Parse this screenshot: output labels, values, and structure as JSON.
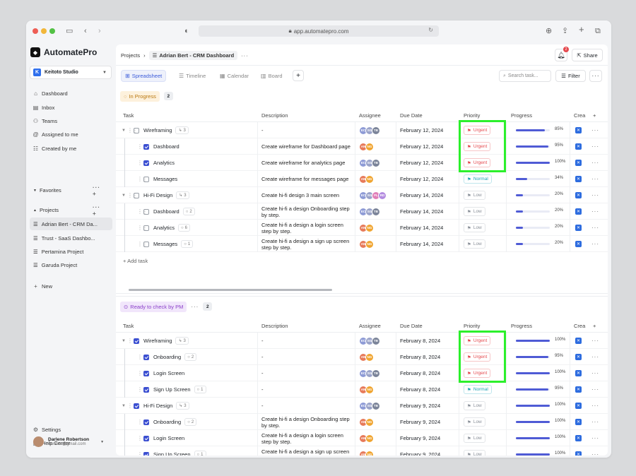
{
  "browser": {
    "url": "app.automatepro.com"
  },
  "app": {
    "name": "AutomatePro"
  },
  "workspace": {
    "name": "Keitoto Studio",
    "initial": "K"
  },
  "nav": {
    "dashboard": "Dashboard",
    "inbox": "Inbox",
    "teams": "Teams",
    "assigned": "Assigned to me",
    "created": "Created by me",
    "favorites": "Favorites",
    "projects": "Projects",
    "new": "New",
    "settings": "Settings",
    "help": "Help Center"
  },
  "projects": [
    "Adrian Bert - CRM Da...",
    "Trust - SaaS Dashbo...",
    "Pertamina Project",
    "Garuda Project"
  ],
  "user": {
    "name": "Darlene Robertson",
    "email": "darlene@gmail.com"
  },
  "breadcrumb": {
    "root": "Projects",
    "current": "Adrian Bert - CRM Dashboard"
  },
  "notifications": {
    "count": "2"
  },
  "share_label": "Share",
  "views": [
    "Spreadsheet",
    "Timeline",
    "Calendar",
    "Board"
  ],
  "search": {
    "placeholder": "Search task..."
  },
  "filter_label": "Filter",
  "columns": {
    "task": "Task",
    "description": "Description",
    "assignee": "Assignee",
    "due": "Due Date",
    "priority": "Priority",
    "progress": "Progress",
    "created": "Crea"
  },
  "add_task": "Add task",
  "groups": [
    {
      "label": "In Progress",
      "count": "2",
      "rows": [
        {
          "task": "Wireframing",
          "sub": "3",
          "subicon": "subtask",
          "level": 0,
          "checked": false,
          "desc": "-",
          "avatars": [
            "EC",
            "SG",
            "TB"
          ],
          "due": "February 12, 2024",
          "priority": "Urgent",
          "progress": 85,
          "pct": "85%"
        },
        {
          "task": "Dashboard",
          "sub": "",
          "level": 1,
          "checked": true,
          "desc": "Create wireframe for Dashboard page",
          "avatars": [
            "AN",
            "NG"
          ],
          "due": "February 12, 2024",
          "priority": "Urgent",
          "progress": 95,
          "pct": "95%"
        },
        {
          "task": "Analytics",
          "sub": "",
          "level": 1,
          "checked": true,
          "desc": "Create wireframe for analytics page",
          "avatars": [
            "EC",
            "SG",
            "TB"
          ],
          "due": "February 12, 2024",
          "priority": "Urgent",
          "progress": 100,
          "pct": "100%"
        },
        {
          "task": "Messages",
          "sub": "",
          "level": 1,
          "checked": false,
          "desc": "Create wireframe for messages page",
          "avatars": [
            "AN",
            "NG"
          ],
          "due": "February 12, 2024",
          "priority": "Normal",
          "progress": 34,
          "pct": "34%"
        },
        {
          "task": "Hi-Fi Design",
          "sub": "3",
          "subicon": "subtask",
          "level": 0,
          "checked": false,
          "desc": "Create hi-fi design  3 main screen",
          "avatars": [
            "EC",
            "SG",
            "FL",
            "RD"
          ],
          "due": "February 14, 2024",
          "priority": "Low",
          "progress": 20,
          "pct": "20%"
        },
        {
          "task": "Dashboard",
          "sub": "2",
          "subicon": "comment",
          "level": 1,
          "checked": false,
          "desc": "Create hi-fi a design Onboarding step by step.",
          "avatars": [
            "EC",
            "SG",
            "TB"
          ],
          "due": "February 14, 2024",
          "priority": "Low",
          "progress": 20,
          "pct": "20%"
        },
        {
          "task": "Analytics",
          "sub": "6",
          "subicon": "comment",
          "level": 1,
          "checked": false,
          "desc": "Create hi-fi a design a login screen step by step.",
          "avatars": [
            "AN",
            "NG"
          ],
          "due": "February 14, 2024",
          "priority": "Low",
          "progress": 20,
          "pct": "20%"
        },
        {
          "task": "Messages",
          "sub": "1",
          "subicon": "comment",
          "level": 1,
          "checked": false,
          "desc": "Create hi-fi a design a sign up screen step by step.",
          "avatars": [
            "AN",
            "NG"
          ],
          "due": "February 14, 2024",
          "priority": "Low",
          "progress": 20,
          "pct": "20%"
        }
      ]
    },
    {
      "label": "Ready to check by PM",
      "count": "2",
      "rows": [
        {
          "task": "Wireframing",
          "sub": "3",
          "subicon": "subtask",
          "level": 0,
          "checked": true,
          "desc": "-",
          "avatars": [
            "EC",
            "SG",
            "TB"
          ],
          "due": "February 8, 2024",
          "priority": "Urgent",
          "progress": 100,
          "pct": "100%"
        },
        {
          "task": "Onboarding",
          "sub": "2",
          "subicon": "comment",
          "level": 1,
          "checked": true,
          "desc": "-",
          "avatars": [
            "AN",
            "NG"
          ],
          "due": "February 8, 2024",
          "priority": "Urgent",
          "progress": 95,
          "pct": "95%"
        },
        {
          "task": "Login Screen",
          "sub": "",
          "level": 1,
          "checked": true,
          "desc": "-",
          "avatars": [
            "EC",
            "SG",
            "TB"
          ],
          "due": "February 8, 2024",
          "priority": "Urgent",
          "progress": 100,
          "pct": "100%"
        },
        {
          "task": "Sign Up Screen",
          "sub": "1",
          "subicon": "comment",
          "level": 1,
          "checked": true,
          "desc": "-",
          "avatars": [
            "AN",
            "NG"
          ],
          "due": "February 8, 2024",
          "priority": "Normal",
          "progress": 95,
          "pct": "95%"
        },
        {
          "task": "Hi-Fi Design",
          "sub": "3",
          "subicon": "subtask",
          "level": 0,
          "checked": true,
          "desc": "-",
          "avatars": [
            "EC",
            "SG",
            "TB"
          ],
          "due": "February 9, 2024",
          "priority": "Low",
          "progress": 100,
          "pct": "100%"
        },
        {
          "task": "Onboarding",
          "sub": "2",
          "subicon": "comment",
          "level": 1,
          "checked": true,
          "desc": "Create hi-fi a design Onboarding step by step.",
          "avatars": [
            "AN",
            "NG"
          ],
          "due": "February 9, 2024",
          "priority": "Low",
          "progress": 100,
          "pct": "100%"
        },
        {
          "task": "Login Screen",
          "sub": "",
          "level": 1,
          "checked": true,
          "desc": "Create hi-fi a design a login screen step by step.",
          "avatars": [
            "AN",
            "NG"
          ],
          "due": "February 9, 2024",
          "priority": "Low",
          "progress": 100,
          "pct": "100%"
        },
        {
          "task": "Sign Up Screen",
          "sub": "1",
          "subicon": "comment",
          "level": 1,
          "checked": true,
          "desc": "Create hi-fi a design a sign up screen step by step.",
          "avatars": [
            "AN",
            "NG"
          ],
          "due": "February 9, 2024",
          "priority": "Low",
          "progress": 100,
          "pct": "100%"
        }
      ]
    }
  ],
  "colors": {
    "accent": "#3b4fd1",
    "urgent": "#e5484d",
    "normal": "#20a3b5",
    "low": "#8a9099",
    "highlight": "#2cf02c",
    "in_progress_bg": "#fdf1dc",
    "in_progress_fg": "#b9770e",
    "ready_bg": "#f1e6fb",
    "ready_fg": "#8a3fc9"
  }
}
